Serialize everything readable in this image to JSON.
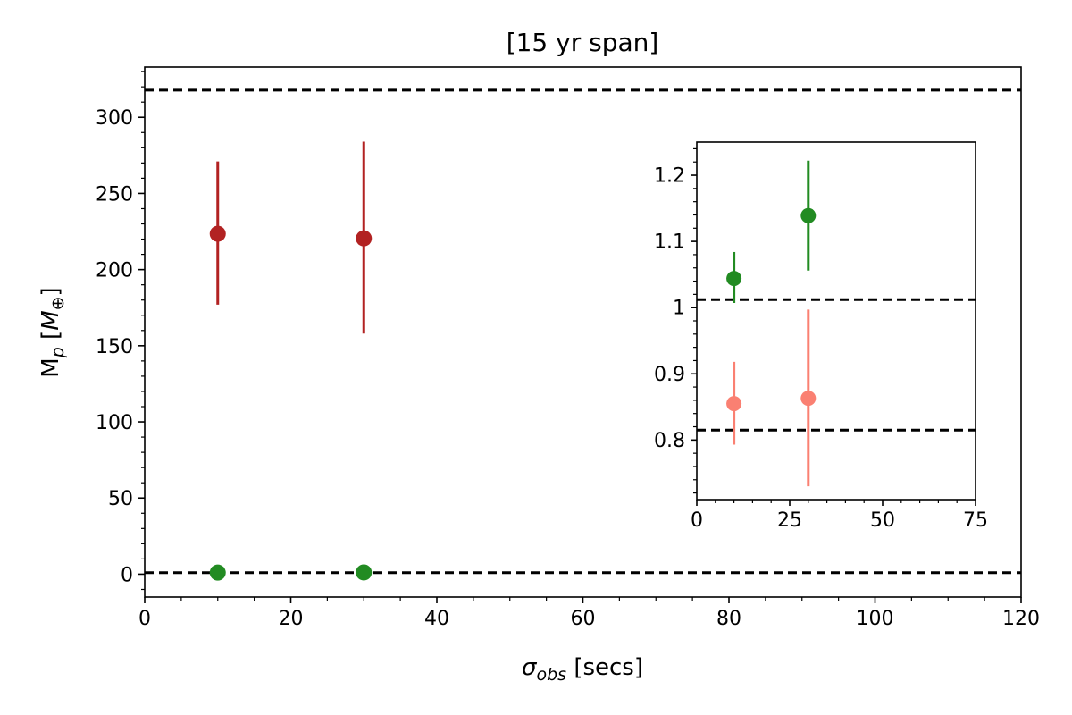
{
  "chart_data": [
    {
      "type": "scatter",
      "title": "[15 yr span]",
      "xlabel_main": "σ",
      "xlabel_sub": "obs",
      "xlabel_suffix": " [secs]",
      "ylabel_main": "M",
      "ylabel_sub": "p",
      "ylabel_unit_open": " [",
      "ylabel_unit": "M",
      "ylabel_unit_sub": "⊕",
      "ylabel_unit_close": "]",
      "xlim": [
        0,
        120
      ],
      "ylim": [
        -15,
        333
      ],
      "xticks": [
        0,
        20,
        40,
        60,
        80,
        100,
        120
      ],
      "yticks": [
        0,
        50,
        100,
        150,
        200,
        250,
        300
      ],
      "grid": false,
      "reference_lines": [
        {
          "y": 317.8,
          "style": "dashed",
          "color": "#000000"
        },
        {
          "y": 1.0,
          "style": "dashed",
          "color": "#000000"
        }
      ],
      "series": [
        {
          "color": "#b22222",
          "points": [
            {
              "x": 10,
              "y": 223.5,
              "lo": 177,
              "hi": 271
            },
            {
              "x": 30,
              "y": 220.5,
              "lo": 158,
              "hi": 284
            }
          ]
        },
        {
          "color": "#228b22",
          "points": [
            {
              "x": 10,
              "y": 1.04,
              "lo": 1.01,
              "hi": 1.08
            },
            {
              "x": 30,
              "y": 1.14,
              "lo": 1.06,
              "hi": 1.22
            }
          ]
        }
      ]
    },
    {
      "type": "scatter",
      "title": "",
      "xlim": [
        0,
        75
      ],
      "ylim": [
        0.71,
        1.25
      ],
      "xticks": [
        0,
        25,
        50,
        75
      ],
      "yticks": [
        0.8,
        0.9,
        1.0,
        1.1,
        1.2
      ],
      "grid": false,
      "reference_lines": [
        {
          "y": 1.012,
          "style": "dashed",
          "color": "#000000"
        },
        {
          "y": 0.815,
          "style": "dashed",
          "color": "#000000"
        }
      ],
      "series": [
        {
          "color": "#228b22",
          "points": [
            {
              "x": 10,
              "y": 1.044,
              "lo": 1.007,
              "hi": 1.084
            },
            {
              "x": 30,
              "y": 1.139,
              "lo": 1.056,
              "hi": 1.222
            }
          ]
        },
        {
          "color": "#fa8072",
          "points": [
            {
              "x": 10,
              "y": 0.855,
              "lo": 0.793,
              "hi": 0.918
            },
            {
              "x": 30,
              "y": 0.863,
              "lo": 0.73,
              "hi": 0.997
            }
          ]
        }
      ]
    }
  ]
}
